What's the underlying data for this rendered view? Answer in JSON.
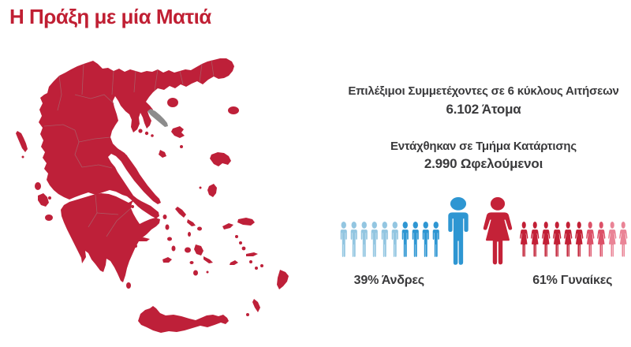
{
  "title": {
    "text": "Η Πράξη με μία Ματιά"
  },
  "colors": {
    "brand_red": "#C01F33",
    "map_red": "#BE2039",
    "athos_gray": "#8C8C8C",
    "border_line": "#9B8F8F",
    "text_dark": "#3A3A3C",
    "blue": "#2E96D2",
    "light_blue": "#93C6E1",
    "red": "#C42238",
    "light_red": "#E2647A"
  },
  "map": {
    "region_name": "Greece"
  },
  "stats": [
    {
      "label": "Επιλέξιμοι Συμμετέχοντες σε 6 κύκλους Αιτήσεων",
      "value": "6.102 Άτομα"
    },
    {
      "label": "Εντάχθηκαν σε Τμήμα Κατάρτισης",
      "value": "2.990 Ωφελούμενοι"
    }
  ],
  "gender_chart": {
    "men": {
      "label": "39% Άνδρες",
      "percent": 39,
      "big_color": "#2E96D2",
      "small_icon_colors": [
        "#93C6E1",
        "#93C6E1",
        "#93C6E1",
        "#93C6E1",
        "#93C6E1",
        "#93C6E1",
        "#2E96D2",
        "#2E96D2",
        "#2E96D2",
        "#2E96D2"
      ]
    },
    "women": {
      "label": "61% Γυναίκες",
      "percent": 61,
      "big_color": "#C42238",
      "small_icon_colors": [
        "#C22036",
        "#C22036",
        "#C22036",
        "#C22036",
        "#C22036",
        "#C22036",
        "#DC5168",
        "#DC5168",
        "#EA8496",
        "#EA8496"
      ]
    }
  },
  "chart_data": {
    "type": "pictograph",
    "title": "Η Πράξη με μία Ματιά",
    "map_region": "Greece",
    "stats": [
      {
        "label": "Επιλέξιμοι Συμμετέχοντες σε 6 κύκλους Αιτήσεων",
        "value": 6102,
        "value_text": "6.102 Άτομα"
      },
      {
        "label": "Εντάχθηκαν σε Τμήμα Κατάρτισης",
        "value": 2990,
        "value_text": "2.990 Ωφελούμενοι"
      }
    ],
    "series": [
      {
        "name": "Άνδρες",
        "percent": 39,
        "label": "39% Άνδρες",
        "color": "#2E96D2",
        "icons_total": 10,
        "icons_highlighted": 4
      },
      {
        "name": "Γυναίκες",
        "percent": 61,
        "label": "61% Γυναίκες",
        "color": "#C42238",
        "icons_total": 10,
        "icons_highlighted": 6
      }
    ],
    "legend_position": "below-icons",
    "grid": false
  }
}
